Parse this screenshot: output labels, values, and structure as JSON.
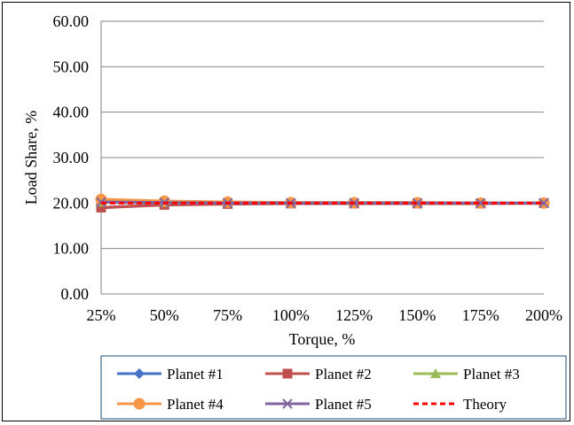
{
  "chart_data": {
    "type": "line",
    "title": "",
    "xlabel": "Torque, %",
    "ylabel": "Load  Share, %",
    "categories": [
      "25%",
      "50%",
      "75%",
      "100%",
      "125%",
      "150%",
      "175%",
      "200%"
    ],
    "ylim": [
      0,
      60
    ],
    "yticks": [
      "0.00",
      "10.00",
      "20.00",
      "30.00",
      "40.00",
      "50.00",
      "60.00"
    ],
    "grid": "horizontal",
    "legend_position": "bottom",
    "series": [
      {
        "name": "Planet #1",
        "color": "#4472c4",
        "marker": "diamond",
        "values": [
          20.3,
          20.1,
          20.0,
          20.0,
          20.0,
          20.0,
          20.0,
          20.0
        ]
      },
      {
        "name": "Planet #2",
        "color": "#c0504d",
        "marker": "square",
        "values": [
          19.0,
          19.6,
          19.8,
          19.9,
          19.9,
          19.9,
          19.9,
          20.0
        ]
      },
      {
        "name": "Planet #3",
        "color": "#9bbb59",
        "marker": "triangle",
        "values": [
          20.2,
          20.1,
          20.0,
          20.0,
          20.0,
          20.0,
          20.0,
          20.0
        ]
      },
      {
        "name": "Planet #4",
        "color": "#f79646",
        "marker": "circle",
        "values": [
          20.8,
          20.4,
          20.2,
          20.1,
          20.1,
          20.1,
          20.0,
          20.0
        ]
      },
      {
        "name": "Planet #5",
        "color": "#8064a2",
        "marker": "x",
        "values": [
          20.2,
          20.1,
          20.0,
          20.0,
          20.0,
          20.0,
          20.0,
          20.0
        ]
      },
      {
        "name": "Theory",
        "color": "#ff0000",
        "marker": "none",
        "dashed": true,
        "values": [
          20,
          20,
          20,
          20,
          20,
          20,
          20,
          20
        ]
      }
    ]
  }
}
